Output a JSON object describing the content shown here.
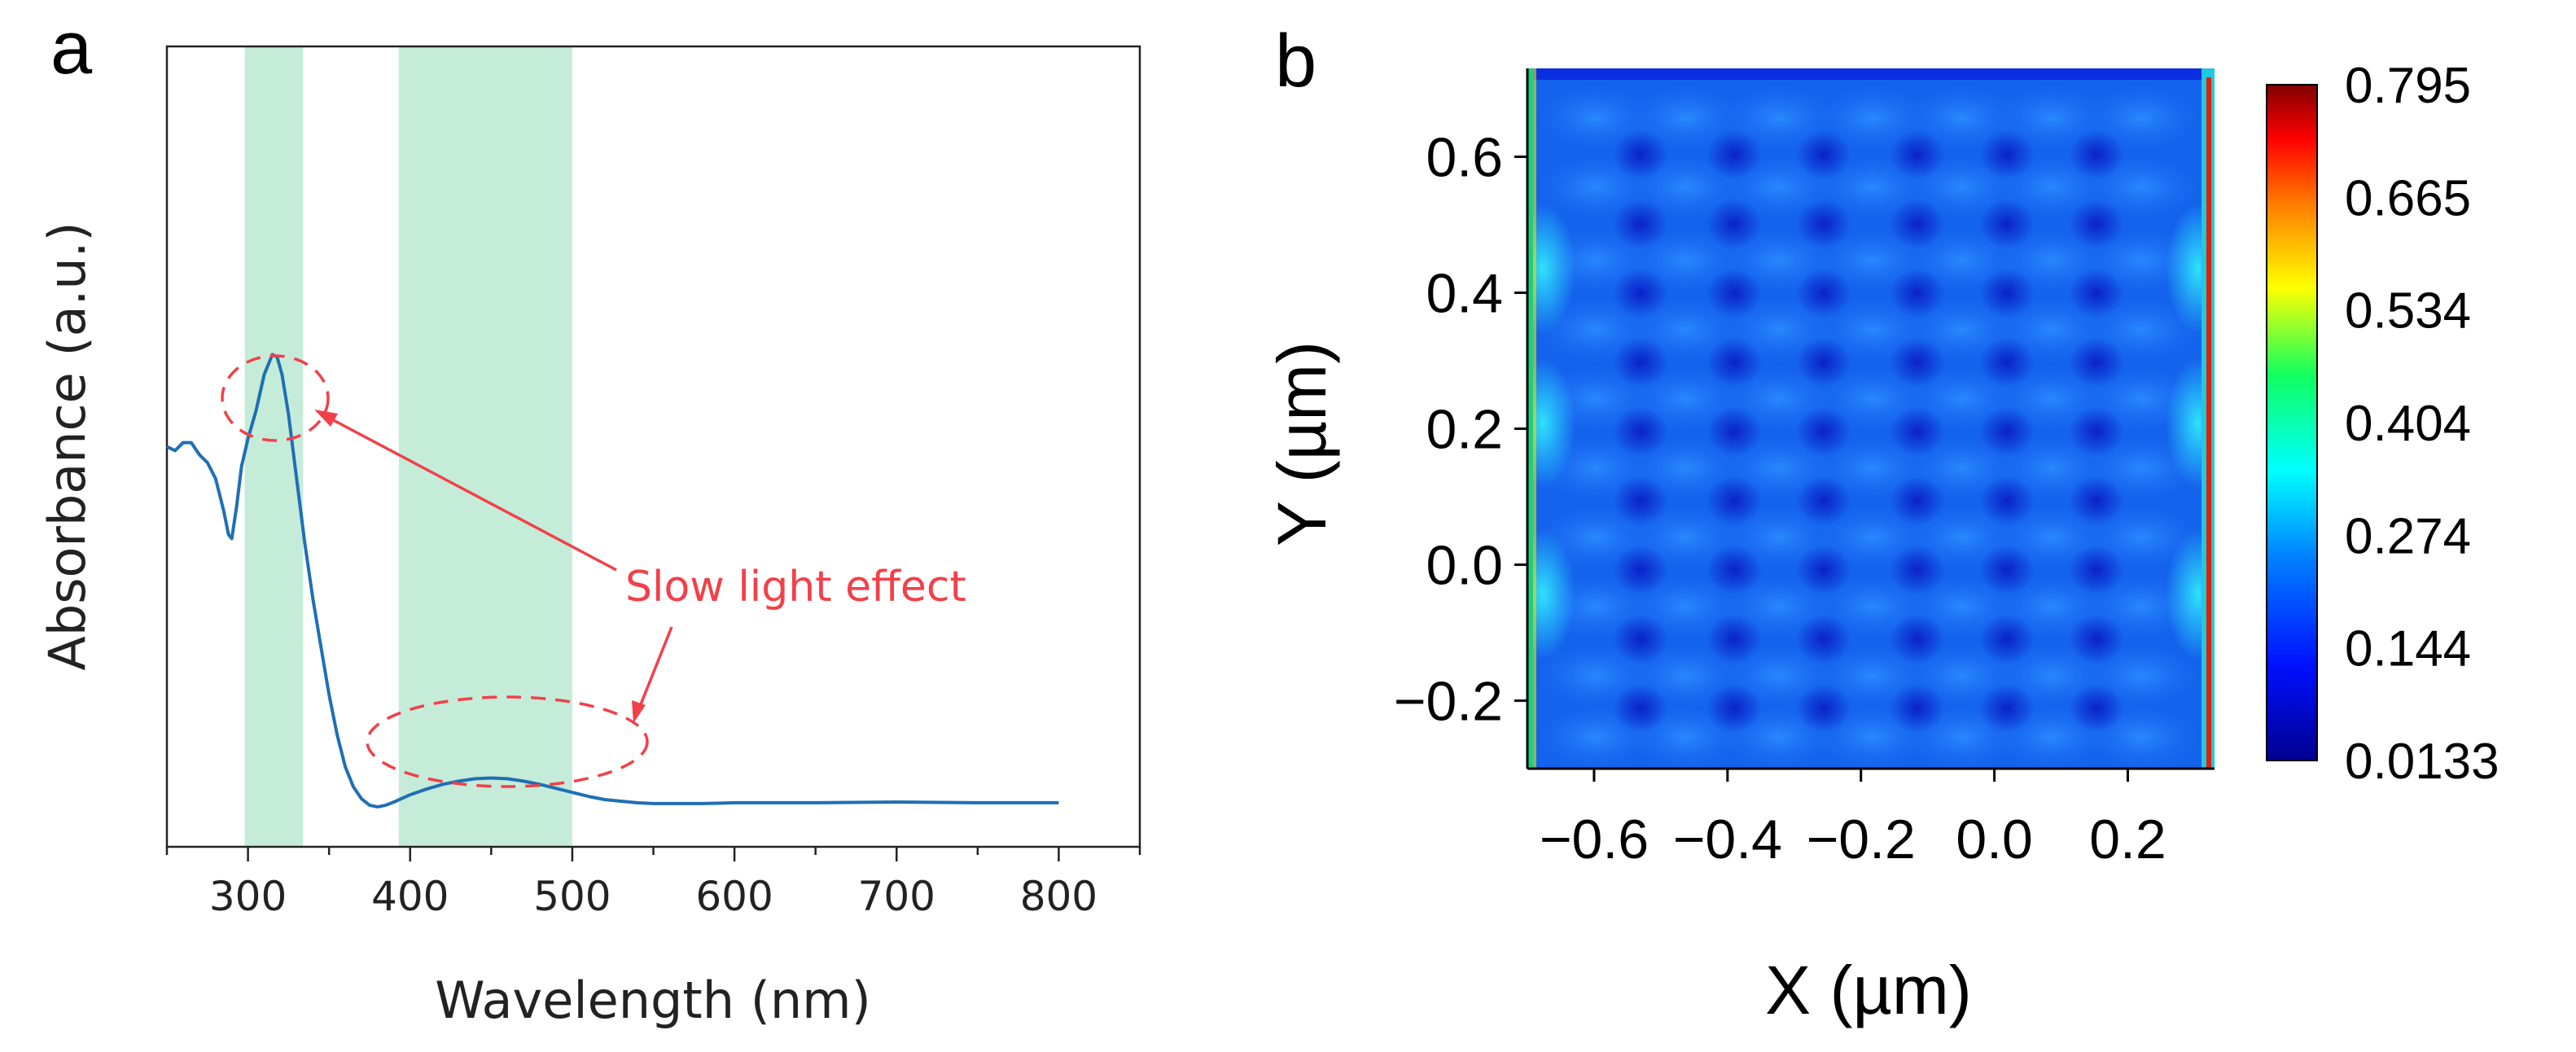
{
  "panel_a": {
    "letter": "a",
    "chart_data": {
      "type": "line",
      "xlabel": "Wavelength (nm)",
      "ylabel": "Absorbance (a.u.)",
      "xlim": [
        250,
        850
      ],
      "ylim": [
        0,
        1
      ],
      "xticks": [
        300,
        400,
        500,
        600,
        700,
        800
      ],
      "yticks_shown": false,
      "shaded_bands": [
        [
          298,
          334
        ],
        [
          393,
          500
        ]
      ],
      "series": [
        {
          "name": "Absorbance",
          "color": "#1f6fb5",
          "x": [
            250,
            255,
            260,
            265,
            270,
            275,
            280,
            285,
            288,
            290,
            293,
            296,
            300,
            305,
            310,
            315,
            318,
            321,
            325,
            330,
            335,
            340,
            345,
            350,
            355,
            360,
            365,
            370,
            375,
            380,
            385,
            390,
            400,
            410,
            420,
            430,
            440,
            450,
            460,
            470,
            480,
            490,
            500,
            510,
            520,
            530,
            540,
            550,
            560,
            580,
            600,
            650,
            700,
            750,
            800
          ],
          "y": [
            0.5,
            0.495,
            0.505,
            0.505,
            0.49,
            0.48,
            0.46,
            0.42,
            0.39,
            0.385,
            0.425,
            0.475,
            0.51,
            0.545,
            0.59,
            0.615,
            0.612,
            0.59,
            0.54,
            0.46,
            0.38,
            0.31,
            0.25,
            0.19,
            0.14,
            0.1,
            0.075,
            0.06,
            0.052,
            0.05,
            0.052,
            0.056,
            0.065,
            0.072,
            0.078,
            0.082,
            0.085,
            0.086,
            0.085,
            0.082,
            0.078,
            0.073,
            0.068,
            0.063,
            0.059,
            0.057,
            0.055,
            0.054,
            0.054,
            0.054,
            0.055,
            0.055,
            0.056,
            0.055,
            0.055
          ]
        }
      ],
      "annotations": [
        {
          "text": "Slow light effect",
          "color": "#f2404a",
          "targets": [
            [
              323,
              0.62
            ],
            [
              457,
              0.09
            ]
          ]
        }
      ]
    }
  },
  "panel_b": {
    "letter": "b",
    "chart_data": {
      "type": "heatmap",
      "xlabel": "X (µm)",
      "ylabel": "Y (µm)",
      "xlim": [
        -0.7,
        0.33
      ],
      "ylim": [
        -0.3,
        0.73
      ],
      "xtick_values": [
        -0.6,
        -0.4,
        -0.2,
        0.0,
        0.2
      ],
      "xtick_labels": [
        "−0.6",
        "−0.4",
        "−0.2",
        "0.0",
        "0.2"
      ],
      "ytick_values": [
        0.6,
        0.4,
        0.2,
        0.0,
        -0.2
      ],
      "ytick_labels": [
        "0.6",
        "0.4",
        "0.2",
        "0.0",
        "−0.2"
      ],
      "colorbar": {
        "min": 0.0133,
        "max": 0.795,
        "ticks": [
          "0.795",
          "0.665",
          "0.534",
          "0.404",
          "0.274",
          "0.144",
          "0.0133"
        ],
        "colormap": [
          "#00008f",
          "#0010ff",
          "#0080ff",
          "#00ffff",
          "#10ff60",
          "#ffff00",
          "#ff8000",
          "#ff0000",
          "#800000"
        ]
      }
    }
  }
}
